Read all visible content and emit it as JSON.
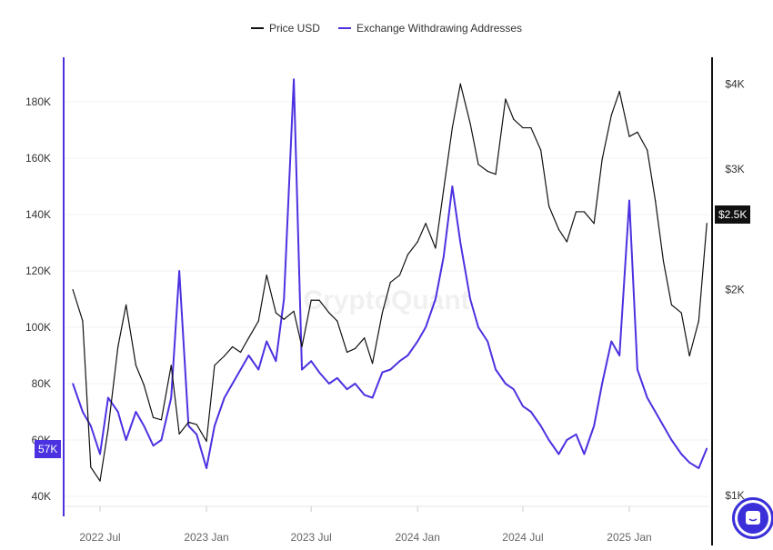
{
  "chart_data": {
    "type": "line",
    "legend": [
      "Price USD",
      "Exchange Withdrawing Addresses"
    ],
    "legend_placement": "top-center",
    "watermark": "CryptoQuant",
    "grid": true,
    "colors": {
      "price": "#111111",
      "addresses": "#4b32e0"
    },
    "x_ticks": [
      "2022 Jul",
      "2023 Jan",
      "2023 Jul",
      "2024 Jan",
      "2024 Jul",
      "2025 Jan"
    ],
    "x_tick_dates": [
      "2022-07-01",
      "2023-01-01",
      "2023-07-01",
      "2024-01-01",
      "2024-07-01",
      "2025-01-01"
    ],
    "left_axis": {
      "ticks": [
        "40K",
        "60K",
        "80K",
        "100K",
        "120K",
        "140K",
        "160K",
        "180K"
      ],
      "tick_values": [
        40,
        60,
        80,
        100,
        120,
        140,
        160,
        180
      ],
      "unit": "thousands"
    },
    "right_axis": {
      "ticks": [
        "$1K",
        "$2K",
        "$3K",
        "$4K"
      ],
      "tick_values": [
        1000,
        2000,
        3000,
        4000
      ],
      "scale": "log"
    },
    "current_left_label": "57K",
    "current_right_label": "$2.5K",
    "x": [
      "2022-05-15",
      "2022-06-01",
      "2022-06-15",
      "2022-07-01",
      "2022-07-15",
      "2022-08-01",
      "2022-08-15",
      "2022-09-01",
      "2022-09-15",
      "2022-10-01",
      "2022-10-15",
      "2022-11-01",
      "2022-11-15",
      "2022-12-01",
      "2022-12-15",
      "2023-01-01",
      "2023-01-15",
      "2023-02-01",
      "2023-02-15",
      "2023-03-01",
      "2023-03-15",
      "2023-04-01",
      "2023-04-15",
      "2023-05-01",
      "2023-05-15",
      "2023-06-01",
      "2023-06-15",
      "2023-07-01",
      "2023-07-15",
      "2023-08-01",
      "2023-08-15",
      "2023-09-01",
      "2023-09-15",
      "2023-10-01",
      "2023-10-15",
      "2023-11-01",
      "2023-11-15",
      "2023-12-01",
      "2023-12-15",
      "2024-01-01",
      "2024-01-15",
      "2024-02-01",
      "2024-02-15",
      "2024-03-01",
      "2024-03-15",
      "2024-04-01",
      "2024-04-15",
      "2024-05-01",
      "2024-05-15",
      "2024-06-01",
      "2024-06-15",
      "2024-07-01",
      "2024-07-15",
      "2024-08-01",
      "2024-08-15",
      "2024-09-01",
      "2024-09-15",
      "2024-10-01",
      "2024-10-15",
      "2024-11-01",
      "2024-11-15",
      "2024-12-01",
      "2024-12-15",
      "2025-01-01",
      "2025-01-15",
      "2025-02-01",
      "2025-02-15",
      "2025-03-01",
      "2025-03-15",
      "2025-04-01",
      "2025-04-15",
      "2025-05-01",
      "2025-05-15"
    ],
    "series": [
      {
        "name": "Price USD",
        "axis": "right",
        "values": [
          2000,
          1800,
          1100,
          1050,
          1250,
          1650,
          1900,
          1550,
          1450,
          1300,
          1290,
          1550,
          1230,
          1280,
          1270,
          1200,
          1550,
          1600,
          1650,
          1620,
          1700,
          1800,
          2100,
          1850,
          1810,
          1860,
          1650,
          1930,
          1930,
          1850,
          1800,
          1620,
          1640,
          1700,
          1560,
          1850,
          2050,
          2100,
          2250,
          2350,
          2500,
          2300,
          2800,
          3450,
          4000,
          3500,
          3050,
          2980,
          2950,
          3800,
          3550,
          3450,
          3450,
          3200,
          2650,
          2450,
          2350,
          2600,
          2600,
          2500,
          3100,
          3600,
          3900,
          3350,
          3400,
          3200,
          2700,
          2200,
          1900,
          1850,
          1600,
          1800,
          2500
        ]
      },
      {
        "name": "Exchange Withdrawing Addresses",
        "axis": "left",
        "values": [
          80,
          70,
          65,
          55,
          75,
          70,
          60,
          70,
          65,
          58,
          60,
          75,
          120,
          65,
          62,
          50,
          65,
          75,
          80,
          85,
          90,
          85,
          95,
          88,
          110,
          188,
          85,
          88,
          84,
          80,
          82,
          78,
          80,
          76,
          75,
          84,
          85,
          88,
          90,
          95,
          100,
          110,
          125,
          150,
          130,
          110,
          100,
          95,
          85,
          80,
          78,
          72,
          70,
          65,
          60,
          55,
          60,
          62,
          55,
          65,
          80,
          95,
          90,
          145,
          85,
          75,
          70,
          65,
          60,
          55,
          52,
          50,
          57
        ]
      }
    ]
  }
}
